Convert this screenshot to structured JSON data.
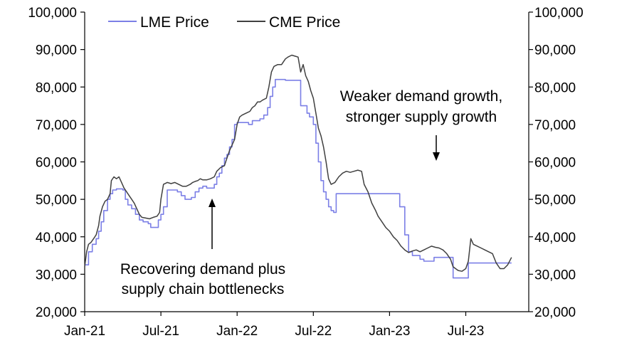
{
  "chart_data": {
    "type": "line",
    "title": "",
    "xlabel": "",
    "ylabel": "",
    "ylim": [
      20000,
      100000
    ],
    "y_ticks": [
      20000,
      30000,
      40000,
      50000,
      60000,
      70000,
      80000,
      90000,
      100000
    ],
    "y_tick_labels": [
      "20,000",
      "30,000",
      "40,000",
      "50,000",
      "60,000",
      "70,000",
      "80,000",
      "90,000",
      "100,000"
    ],
    "y2_ticks": [
      20000,
      30000,
      40000,
      50000,
      60000,
      70000,
      80000,
      90000,
      100000
    ],
    "y2_tick_labels": [
      "20,000",
      "30,000",
      "40,000",
      "50,000",
      "60,000",
      "70,000",
      "80,000",
      "90,000",
      "100,000"
    ],
    "xlim": [
      0,
      35.5
    ],
    "x_ticks": [
      0,
      6,
      12,
      18,
      24,
      30
    ],
    "x_tick_labels": [
      "Jan-21",
      "Jul-21",
      "Jan-22",
      "Jul-22",
      "Jan-23",
      "Jul-23"
    ],
    "legend_position": "top-left",
    "series": [
      {
        "name": "LME Price",
        "color": "#7b7fe6",
        "step": true,
        "points": [
          [
            0.0,
            32500
          ],
          [
            0.3,
            36000
          ],
          [
            0.6,
            38000
          ],
          [
            0.9,
            39500
          ],
          [
            1.1,
            41500
          ],
          [
            1.3,
            44000
          ],
          [
            1.5,
            47000
          ],
          [
            1.8,
            50000
          ],
          [
            2.0,
            51500
          ],
          [
            2.2,
            52500
          ],
          [
            2.5,
            52800
          ],
          [
            2.8,
            52800
          ],
          [
            3.0,
            52500
          ],
          [
            3.2,
            50000
          ],
          [
            3.4,
            48500
          ],
          [
            3.7,
            47500
          ],
          [
            4.0,
            46000
          ],
          [
            4.3,
            44500
          ],
          [
            4.6,
            44000
          ],
          [
            5.0,
            43500
          ],
          [
            5.2,
            42500
          ],
          [
            5.6,
            42500
          ],
          [
            5.8,
            44500
          ],
          [
            6.0,
            46000
          ],
          [
            6.2,
            48000
          ],
          [
            6.5,
            52500
          ],
          [
            6.9,
            52500
          ],
          [
            7.3,
            52000
          ],
          [
            7.6,
            51000
          ],
          [
            7.9,
            50000
          ],
          [
            8.1,
            50000
          ],
          [
            8.4,
            50500
          ],
          [
            8.7,
            52000
          ],
          [
            9.0,
            53000
          ],
          [
            9.3,
            53500
          ],
          [
            9.6,
            53000
          ],
          [
            9.9,
            53000
          ],
          [
            10.2,
            54000
          ],
          [
            10.4,
            56000
          ],
          [
            10.6,
            57000
          ],
          [
            10.8,
            59000
          ],
          [
            11.0,
            61000
          ],
          [
            11.2,
            62000
          ],
          [
            11.4,
            64000
          ],
          [
            11.6,
            66000
          ],
          [
            11.8,
            70000
          ],
          [
            12.0,
            70500
          ],
          [
            12.3,
            70500
          ],
          [
            12.6,
            70500
          ],
          [
            12.9,
            70000
          ],
          [
            13.2,
            71000
          ],
          [
            13.5,
            71000
          ],
          [
            13.8,
            71500
          ],
          [
            14.1,
            72500
          ],
          [
            14.4,
            74500
          ],
          [
            14.6,
            77500
          ],
          [
            14.8,
            80000
          ],
          [
            15.0,
            82000
          ],
          [
            15.4,
            82000
          ],
          [
            15.8,
            81800
          ],
          [
            16.2,
            81800
          ],
          [
            16.6,
            81800
          ],
          [
            16.9,
            81800
          ],
          [
            17.0,
            75000
          ],
          [
            17.3,
            75000
          ],
          [
            17.5,
            73000
          ],
          [
            17.7,
            72000
          ],
          [
            18.0,
            70000
          ],
          [
            18.2,
            65000
          ],
          [
            18.4,
            60000
          ],
          [
            18.6,
            55000
          ],
          [
            18.8,
            52000
          ],
          [
            19.0,
            50000
          ],
          [
            19.2,
            48000
          ],
          [
            19.4,
            47000
          ],
          [
            19.6,
            46500
          ],
          [
            19.8,
            51500
          ],
          [
            20.2,
            51500
          ],
          [
            21.0,
            51500
          ],
          [
            21.8,
            51500
          ],
          [
            22.6,
            51500
          ],
          [
            23.4,
            51500
          ],
          [
            24.2,
            51500
          ],
          [
            24.8,
            48000
          ],
          [
            25.2,
            40500
          ],
          [
            25.5,
            36000
          ],
          [
            25.8,
            35000
          ],
          [
            26.1,
            35000
          ],
          [
            26.4,
            34000
          ],
          [
            26.7,
            33500
          ],
          [
            27.0,
            33500
          ],
          [
            27.5,
            34500
          ],
          [
            28.0,
            34500
          ],
          [
            28.5,
            34500
          ],
          [
            28.8,
            34500
          ],
          [
            29.0,
            29000
          ],
          [
            29.5,
            29000
          ],
          [
            30.0,
            29000
          ],
          [
            30.2,
            33000
          ],
          [
            31.0,
            33000
          ],
          [
            32.0,
            33000
          ],
          [
            33.0,
            33000
          ],
          [
            33.6,
            33000
          ]
        ]
      },
      {
        "name": "CME Price",
        "color": "#404040",
        "step": false,
        "points": [
          [
            0.0,
            32000
          ],
          [
            0.15,
            36000
          ],
          [
            0.3,
            38000
          ],
          [
            0.5,
            38500
          ],
          [
            0.7,
            39500
          ],
          [
            0.9,
            40500
          ],
          [
            1.1,
            43000
          ],
          [
            1.2,
            45500
          ],
          [
            1.4,
            48000
          ],
          [
            1.6,
            49500
          ],
          [
            1.8,
            50000
          ],
          [
            2.0,
            51500
          ],
          [
            2.1,
            55000
          ],
          [
            2.3,
            56000
          ],
          [
            2.5,
            55500
          ],
          [
            2.7,
            56000
          ],
          [
            2.9,
            54500
          ],
          [
            3.1,
            53000
          ],
          [
            3.3,
            52000
          ],
          [
            3.5,
            51000
          ],
          [
            3.7,
            50000
          ],
          [
            3.9,
            49000
          ],
          [
            4.1,
            47500
          ],
          [
            4.3,
            46000
          ],
          [
            4.5,
            45200
          ],
          [
            4.8,
            45000
          ],
          [
            5.1,
            44800
          ],
          [
            5.4,
            45200
          ],
          [
            5.7,
            45500
          ],
          [
            5.9,
            46500
          ],
          [
            6.0,
            50000
          ],
          [
            6.2,
            54000
          ],
          [
            6.5,
            54500
          ],
          [
            6.8,
            54200
          ],
          [
            7.1,
            54500
          ],
          [
            7.4,
            54000
          ],
          [
            7.7,
            53500
          ],
          [
            8.0,
            53500
          ],
          [
            8.3,
            54000
          ],
          [
            8.5,
            54500
          ],
          [
            8.7,
            54800
          ],
          [
            8.9,
            55000
          ],
          [
            9.1,
            55500
          ],
          [
            9.3,
            55200
          ],
          [
            9.6,
            55200
          ],
          [
            9.9,
            55500
          ],
          [
            10.2,
            56000
          ],
          [
            10.4,
            57500
          ],
          [
            10.7,
            58500
          ],
          [
            11.0,
            59000
          ],
          [
            11.2,
            61000
          ],
          [
            11.4,
            63000
          ],
          [
            11.6,
            64500
          ],
          [
            11.8,
            66000
          ],
          [
            12.0,
            70000
          ],
          [
            12.2,
            72000
          ],
          [
            12.4,
            72500
          ],
          [
            12.7,
            73000
          ],
          [
            13.0,
            73500
          ],
          [
            13.2,
            74500
          ],
          [
            13.4,
            75000
          ],
          [
            13.6,
            76000
          ],
          [
            13.8,
            76000
          ],
          [
            14.0,
            76500
          ],
          [
            14.3,
            77000
          ],
          [
            14.5,
            80000
          ],
          [
            14.7,
            84000
          ],
          [
            14.9,
            85500
          ],
          [
            15.2,
            86000
          ],
          [
            15.5,
            86000
          ],
          [
            15.8,
            87500
          ],
          [
            16.0,
            88000
          ],
          [
            16.3,
            88500
          ],
          [
            16.6,
            88200
          ],
          [
            16.8,
            88000
          ],
          [
            17.0,
            84000
          ],
          [
            17.2,
            86000
          ],
          [
            17.4,
            83000
          ],
          [
            17.6,
            81500
          ],
          [
            17.8,
            79000
          ],
          [
            18.0,
            77000
          ],
          [
            18.2,
            73000
          ],
          [
            18.4,
            69000
          ],
          [
            18.6,
            67000
          ],
          [
            18.8,
            64000
          ],
          [
            19.0,
            60000
          ],
          [
            19.2,
            55500
          ],
          [
            19.4,
            54000
          ],
          [
            19.7,
            54500
          ],
          [
            20.0,
            56000
          ],
          [
            20.3,
            57000
          ],
          [
            20.6,
            57500
          ],
          [
            20.9,
            57200
          ],
          [
            21.2,
            57500
          ],
          [
            21.5,
            57800
          ],
          [
            21.8,
            57500
          ],
          [
            22.0,
            54000
          ],
          [
            22.3,
            52000
          ],
          [
            22.6,
            49000
          ],
          [
            22.9,
            47000
          ],
          [
            23.1,
            45500
          ],
          [
            23.4,
            44000
          ],
          [
            23.7,
            42500
          ],
          [
            24.0,
            41500
          ],
          [
            24.3,
            40000
          ],
          [
            24.6,
            39000
          ],
          [
            24.9,
            37500
          ],
          [
            25.2,
            36500
          ],
          [
            25.5,
            35800
          ],
          [
            25.8,
            36200
          ],
          [
            26.1,
            36500
          ],
          [
            26.4,
            36000
          ],
          [
            26.7,
            36500
          ],
          [
            27.0,
            37000
          ],
          [
            27.3,
            37500
          ],
          [
            27.6,
            37200
          ],
          [
            27.9,
            37000
          ],
          [
            28.2,
            36500
          ],
          [
            28.5,
            35500
          ],
          [
            28.8,
            34000
          ],
          [
            29.0,
            32000
          ],
          [
            29.2,
            31500
          ],
          [
            29.4,
            31000
          ],
          [
            29.7,
            30800
          ],
          [
            30.0,
            31500
          ],
          [
            30.2,
            33500
          ],
          [
            30.4,
            39500
          ],
          [
            30.6,
            38000
          ],
          [
            30.9,
            37500
          ],
          [
            31.2,
            37000
          ],
          [
            31.5,
            36500
          ],
          [
            31.8,
            36000
          ],
          [
            32.1,
            35500
          ],
          [
            32.4,
            33000
          ],
          [
            32.7,
            31500
          ],
          [
            33.0,
            31500
          ],
          [
            33.3,
            32500
          ],
          [
            33.6,
            34500
          ]
        ]
      }
    ],
    "annotations": [
      {
        "lines": [
          "Recovering demand plus",
          "supply chain bottlenecks"
        ],
        "arrow": "up"
      },
      {
        "lines": [
          "Weaker demand growth,",
          "stronger supply growth"
        ],
        "arrow": "down"
      }
    ]
  }
}
